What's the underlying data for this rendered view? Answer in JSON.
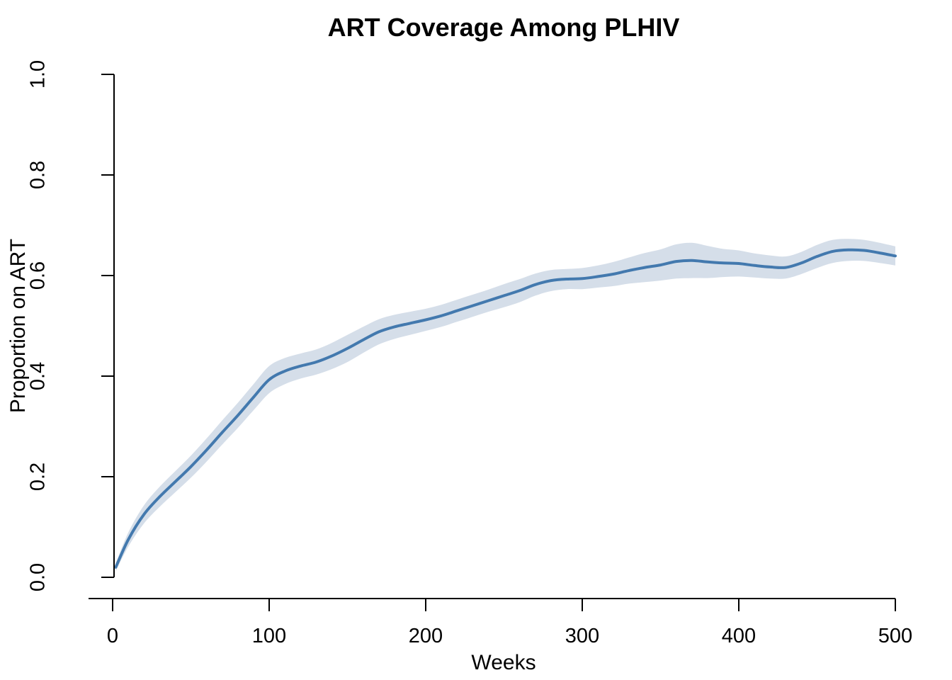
{
  "chart_data": {
    "type": "line",
    "title": "ART Coverage Among PLHIV",
    "xlabel": "Weeks",
    "ylabel": "Proportion on ART",
    "xlim": [
      0,
      500
    ],
    "ylim": [
      0.0,
      1.0
    ],
    "x_ticks": [
      "0",
      "100",
      "200",
      "300",
      "400",
      "500"
    ],
    "y_ticks": [
      "0.0",
      "0.2",
      "0.4",
      "0.6",
      "0.8",
      "1.0"
    ],
    "grid": "off",
    "legend": "none",
    "series": [
      {
        "name": "Proportion on ART (smoothed mean with confidence band)",
        "x": [
          2,
          10,
          20,
          30,
          40,
          50,
          60,
          70,
          80,
          90,
          100,
          110,
          120,
          130,
          140,
          150,
          160,
          170,
          180,
          190,
          200,
          210,
          220,
          230,
          240,
          250,
          260,
          270,
          280,
          290,
          300,
          310,
          320,
          330,
          340,
          350,
          360,
          370,
          380,
          390,
          400,
          410,
          420,
          430,
          440,
          450,
          460,
          470,
          480,
          490,
          500
        ],
        "y": [
          0.02,
          0.075,
          0.125,
          0.16,
          0.19,
          0.22,
          0.253,
          0.288,
          0.322,
          0.358,
          0.393,
          0.41,
          0.42,
          0.428,
          0.44,
          0.455,
          0.472,
          0.488,
          0.498,
          0.505,
          0.512,
          0.52,
          0.53,
          0.54,
          0.55,
          0.56,
          0.57,
          0.582,
          0.59,
          0.593,
          0.594,
          0.598,
          0.603,
          0.61,
          0.616,
          0.621,
          0.628,
          0.63,
          0.627,
          0.625,
          0.624,
          0.62,
          0.617,
          0.616,
          0.625,
          0.638,
          0.648,
          0.651,
          0.65,
          0.645,
          0.639
        ],
        "ci_half": [
          0.008,
          0.014,
          0.018,
          0.02,
          0.021,
          0.022,
          0.023,
          0.024,
          0.025,
          0.026,
          0.027,
          0.026,
          0.025,
          0.025,
          0.026,
          0.027,
          0.026,
          0.025,
          0.024,
          0.023,
          0.022,
          0.022,
          0.022,
          0.022,
          0.022,
          0.023,
          0.023,
          0.022,
          0.021,
          0.02,
          0.021,
          0.022,
          0.024,
          0.026,
          0.029,
          0.031,
          0.034,
          0.035,
          0.032,
          0.028,
          0.026,
          0.024,
          0.023,
          0.022,
          0.022,
          0.023,
          0.023,
          0.022,
          0.021,
          0.02,
          0.019
        ]
      }
    ],
    "colors": {
      "line": "#4379ae",
      "band": "#d5dee9",
      "axis": "#000000",
      "text": "#000000",
      "background": "#ffffff"
    }
  }
}
